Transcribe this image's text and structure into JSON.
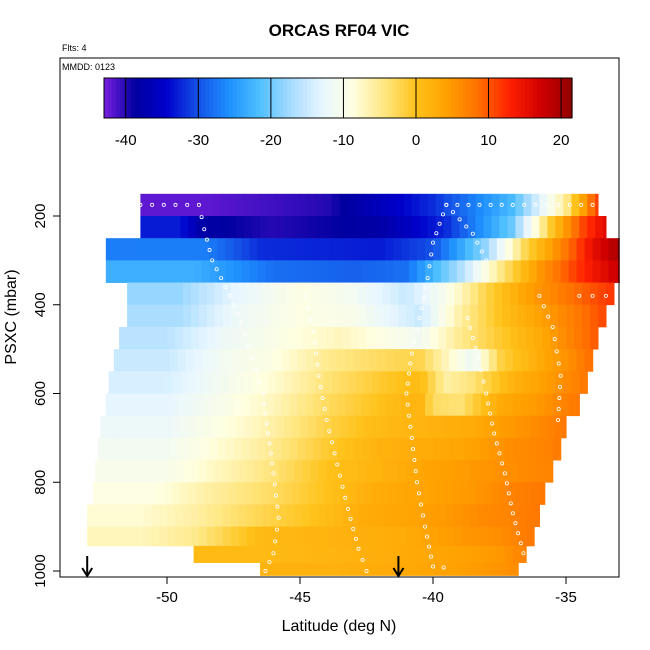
{
  "chart_data": {
    "type": "heatmap",
    "title": "ORCAS RF04 VIC",
    "annotation_flights": "Flts: 4",
    "annotation_date": "MMDD: 0123",
    "xlabel": "Latitude (deg N)",
    "ylabel": "PSXC (mbar)",
    "xlim": [
      -54.5,
      -33.0
    ],
    "ylim": [
      1010,
      100
    ],
    "x_ticks": [
      -50,
      -45,
      -40,
      -35
    ],
    "x_tick_labels": [
      "-50",
      "-45",
      "-40",
      "-35"
    ],
    "y_ticks": [
      200,
      400,
      600,
      800,
      1000
    ],
    "y_tick_labels": [
      "200",
      "400",
      "600",
      "800",
      "1000"
    ],
    "colorbar": {
      "range": [
        -43,
        21.5
      ],
      "ticks": [
        -40,
        -30,
        -20,
        -10,
        0,
        10,
        20
      ],
      "tick_labels": [
        "-40",
        "-30",
        "-20",
        "-10",
        "0",
        "10",
        "20"
      ],
      "colors": [
        "#7b1fe0",
        "#0000a0",
        "#0000cc",
        "#1450e6",
        "#1e90ff",
        "#4fc0ff",
        "#a8dcff",
        "#e8f6ff",
        "#ffffe0",
        "#ffe680",
        "#ffc21a",
        "#ffa000",
        "#ff7000",
        "#ff2000",
        "#d00000",
        "#900000"
      ]
    },
    "pressure_bands": [
      {
        "p": 175,
        "x_start": -51.0,
        "x_end": -33.8,
        "segments": [
          [
            -48.6,
            -42
          ],
          [
            -44,
            -40
          ],
          [
            -40,
            -32
          ],
          [
            -37,
            -22
          ],
          [
            -35,
            -5
          ],
          [
            -33.8,
            12
          ]
        ]
      },
      {
        "p": 225,
        "x_start": -51.0,
        "x_end": -33.5,
        "segments": [
          [
            -49.5,
            -33
          ],
          [
            -48.7,
            -38
          ],
          [
            -46,
            -40
          ],
          [
            -42,
            -38
          ],
          [
            -39.5,
            -32
          ],
          [
            -37,
            -20
          ],
          [
            -35.5,
            0
          ],
          [
            -34.5,
            10
          ],
          [
            -33.5,
            16
          ]
        ]
      },
      {
        "p": 275,
        "x_start": -52.3,
        "x_end": -33.0,
        "segments": [
          [
            -48.5,
            -27
          ],
          [
            -46.5,
            -32
          ],
          [
            -42,
            -33
          ],
          [
            -40,
            -30
          ],
          [
            -38,
            -18
          ],
          [
            -36.5,
            -2
          ],
          [
            -35,
            8
          ],
          [
            -34,
            15
          ],
          [
            -33.0,
            20
          ]
        ]
      },
      {
        "p": 325,
        "x_start": -52.3,
        "x_end": -33.0,
        "segments": [
          [
            -49.0,
            -23
          ],
          [
            -46.0,
            -28
          ],
          [
            -43,
            -29
          ],
          [
            -41,
            -28
          ],
          [
            -39,
            -17
          ],
          [
            -37.5,
            -5
          ],
          [
            -36,
            5
          ],
          [
            -34.5,
            12
          ],
          [
            -33.0,
            18
          ]
        ]
      },
      {
        "p": 375,
        "x_start": -51.5,
        "x_end": -33.2,
        "segments": [
          [
            -49.5,
            -18
          ],
          [
            -47.5,
            -13
          ],
          [
            -45,
            -9
          ],
          [
            -43,
            -11
          ],
          [
            -41,
            -15
          ],
          [
            -39.5,
            -10
          ],
          [
            -38,
            -2
          ],
          [
            -36.5,
            4
          ],
          [
            -35,
            8
          ],
          [
            -33.2,
            12
          ]
        ]
      },
      {
        "p": 425,
        "x_start": -51.5,
        "x_end": -33.5,
        "segments": [
          [
            -49.5,
            -17
          ],
          [
            -47.5,
            -12
          ],
          [
            -45,
            -9
          ],
          [
            -43,
            -10
          ],
          [
            -41.5,
            -13
          ],
          [
            -40.5,
            -15
          ],
          [
            -39,
            -6
          ],
          [
            -37.5,
            0
          ],
          [
            -36,
            4
          ],
          [
            -34.5,
            8
          ],
          [
            -33.5,
            11
          ]
        ]
      },
      {
        "p": 475,
        "x_start": -51.8,
        "x_end": -33.8,
        "segments": [
          [
            -50,
            -16
          ],
          [
            -48,
            -12
          ],
          [
            -45.5,
            -9
          ],
          [
            -43.5,
            -7
          ],
          [
            -42,
            -9
          ],
          [
            -40.5,
            -11
          ],
          [
            -39,
            -5
          ],
          [
            -37.5,
            -1
          ],
          [
            -36,
            3
          ],
          [
            -34.8,
            7
          ],
          [
            -33.8,
            10
          ]
        ]
      },
      {
        "p": 525,
        "x_start": -52.0,
        "x_end": -34.0,
        "segments": [
          [
            -50,
            -15
          ],
          [
            -48,
            -11
          ],
          [
            -46,
            -9
          ],
          [
            -44,
            -5
          ],
          [
            -42,
            -3
          ],
          [
            -40.5,
            -2
          ],
          [
            -39.5,
            -7
          ],
          [
            -38.5,
            -12
          ],
          [
            -37.5,
            -2
          ],
          [
            -36,
            3
          ],
          [
            -34.8,
            6
          ],
          [
            -34.0,
            9
          ]
        ]
      },
      {
        "p": 575,
        "x_start": -52.2,
        "x_end": -34.2,
        "segments": [
          [
            -50,
            -14
          ],
          [
            -48,
            -11
          ],
          [
            -46,
            -8
          ],
          [
            -44,
            -4
          ],
          [
            -42,
            -1
          ],
          [
            -40.5,
            1
          ],
          [
            -39.5,
            -6
          ],
          [
            -38.5,
            -4
          ],
          [
            -37,
            2
          ],
          [
            -35.5,
            5
          ],
          [
            -34.2,
            8
          ]
        ]
      },
      {
        "p": 625,
        "x_start": -52.3,
        "x_end": -34.5,
        "segments": [
          [
            -50,
            -13
          ],
          [
            -48,
            -10
          ],
          [
            -46,
            -7
          ],
          [
            -44,
            -3
          ],
          [
            -42,
            0
          ],
          [
            -40.5,
            2
          ],
          [
            -40,
            -3
          ],
          [
            -39,
            -4
          ],
          [
            -37.5,
            3
          ],
          [
            -36,
            5
          ],
          [
            -34.5,
            8
          ]
        ]
      },
      {
        "p": 675,
        "x_start": -52.5,
        "x_end": -35.0,
        "segments": [
          [
            -50,
            -12
          ],
          [
            -48,
            -9
          ],
          [
            -46,
            -6
          ],
          [
            -44,
            -2
          ],
          [
            -42,
            1
          ],
          [
            -40,
            2
          ],
          [
            -38.5,
            3
          ],
          [
            -37,
            5
          ],
          [
            -35.5,
            7
          ],
          [
            -35.0,
            8
          ]
        ]
      },
      {
        "p": 725,
        "x_start": -52.6,
        "x_end": -35.2,
        "segments": [
          [
            -50,
            -11
          ],
          [
            -48,
            -8
          ],
          [
            -46,
            -5
          ],
          [
            -44,
            -1
          ],
          [
            -42,
            2
          ],
          [
            -40,
            3
          ],
          [
            -38.5,
            4
          ],
          [
            -37,
            6
          ],
          [
            -35.5,
            7
          ],
          [
            -35.2,
            8
          ]
        ]
      },
      {
        "p": 775,
        "x_start": -52.7,
        "x_end": -35.5,
        "segments": [
          [
            -50,
            -10
          ],
          [
            -48,
            -7
          ],
          [
            -46,
            -4
          ],
          [
            -44,
            0
          ],
          [
            -42,
            2
          ],
          [
            -40,
            4
          ],
          [
            -38.5,
            5
          ],
          [
            -37,
            6
          ],
          [
            -35.5,
            7
          ]
        ]
      },
      {
        "p": 825,
        "x_start": -52.8,
        "x_end": -35.8,
        "segments": [
          [
            -50.5,
            -9
          ],
          [
            -48.5,
            -6
          ],
          [
            -46,
            -3
          ],
          [
            -44,
            0
          ],
          [
            -42,
            3
          ],
          [
            -40,
            4
          ],
          [
            -38.5,
            5
          ],
          [
            -37,
            7
          ],
          [
            -35.8,
            8
          ]
        ]
      },
      {
        "p": 875,
        "x_start": -53.0,
        "x_end": -36.0,
        "segments": [
          [
            -51,
            -8
          ],
          [
            -49,
            -6
          ],
          [
            -47,
            -3
          ],
          [
            -44.5,
            0
          ],
          [
            -42.5,
            3
          ],
          [
            -40.5,
            4
          ],
          [
            -38.5,
            6
          ],
          [
            -37,
            7
          ],
          [
            -36.0,
            8
          ]
        ]
      },
      {
        "p": 925,
        "x_start": -53.0,
        "x_end": -36.2,
        "segments": [
          [
            -51,
            -7
          ],
          [
            -49,
            -5
          ],
          [
            -46.5,
            1
          ],
          [
            -43.5,
            2
          ],
          [
            -41,
            3
          ],
          [
            -39,
            5
          ],
          [
            -37.5,
            6
          ],
          [
            -36.2,
            8
          ]
        ]
      },
      {
        "p": 962,
        "x_start": -49.0,
        "x_end": -36.5,
        "segments": [
          [
            -46.5,
            1
          ],
          [
            -43,
            2
          ],
          [
            -41,
            3
          ],
          [
            -39,
            4
          ],
          [
            -37.5,
            5
          ],
          [
            -36.5,
            7
          ]
        ]
      },
      {
        "p": 1000,
        "x_start": -46.5,
        "x_end": -36.8,
        "segments": [
          [
            -44,
            2
          ],
          [
            -41.5,
            3
          ],
          [
            -39.5,
            4
          ],
          [
            -38,
            5
          ],
          [
            -36.8,
            6
          ]
        ]
      }
    ],
    "flight_tracks": [
      [
        [
          -51.0,
          175
        ],
        [
          -48.8,
          175
        ],
        [
          -48.6,
          230
        ],
        [
          -48.3,
          300
        ],
        [
          -47.8,
          360
        ],
        [
          -47.2,
          440
        ],
        [
          -46.8,
          520
        ],
        [
          -46.4,
          600
        ],
        [
          -46.2,
          690
        ],
        [
          -46.0,
          780
        ],
        [
          -45.8,
          880
        ],
        [
          -46.0,
          960
        ],
        [
          -46.3,
          1000
        ]
      ],
      [
        [
          -44.8,
          380
        ],
        [
          -44.5,
          460
        ],
        [
          -44.3,
          560
        ],
        [
          -44.0,
          660
        ],
        [
          -43.6,
          760
        ],
        [
          -43.2,
          860
        ],
        [
          -42.8,
          950
        ],
        [
          -42.5,
          1000
        ]
      ],
      [
        [
          -39.5,
          175
        ],
        [
          -40.0,
          260
        ],
        [
          -40.2,
          340
        ],
        [
          -40.5,
          430
        ],
        [
          -40.8,
          510
        ],
        [
          -41.0,
          600
        ],
        [
          -40.8,
          700
        ],
        [
          -40.6,
          800
        ],
        [
          -40.3,
          900
        ],
        [
          -40.0,
          990
        ],
        [
          -39.6,
          992
        ]
      ],
      [
        [
          -34.0,
          175
        ],
        [
          -37.0,
          175
        ],
        [
          -39.5,
          175
        ],
        [
          -38.5,
          240
        ],
        [
          -38.0,
          300
        ]
      ],
      [
        [
          -38.7,
          430
        ],
        [
          -38.3,
          520
        ],
        [
          -38.0,
          600
        ],
        [
          -37.7,
          690
        ],
        [
          -37.3,
          780
        ],
        [
          -37.0,
          870
        ],
        [
          -36.6,
          960
        ],
        [
          -36.5,
          995
        ]
      ],
      [
        [
          -36.0,
          380
        ],
        [
          -35.5,
          450
        ],
        [
          -35.2,
          560
        ],
        [
          -35.3,
          660
        ]
      ],
      [
        [
          -33.5,
          380
        ],
        [
          -34.5,
          380
        ]
      ]
    ],
    "arrows_at_latitude": [
      -53.0,
      -41.3
    ]
  }
}
